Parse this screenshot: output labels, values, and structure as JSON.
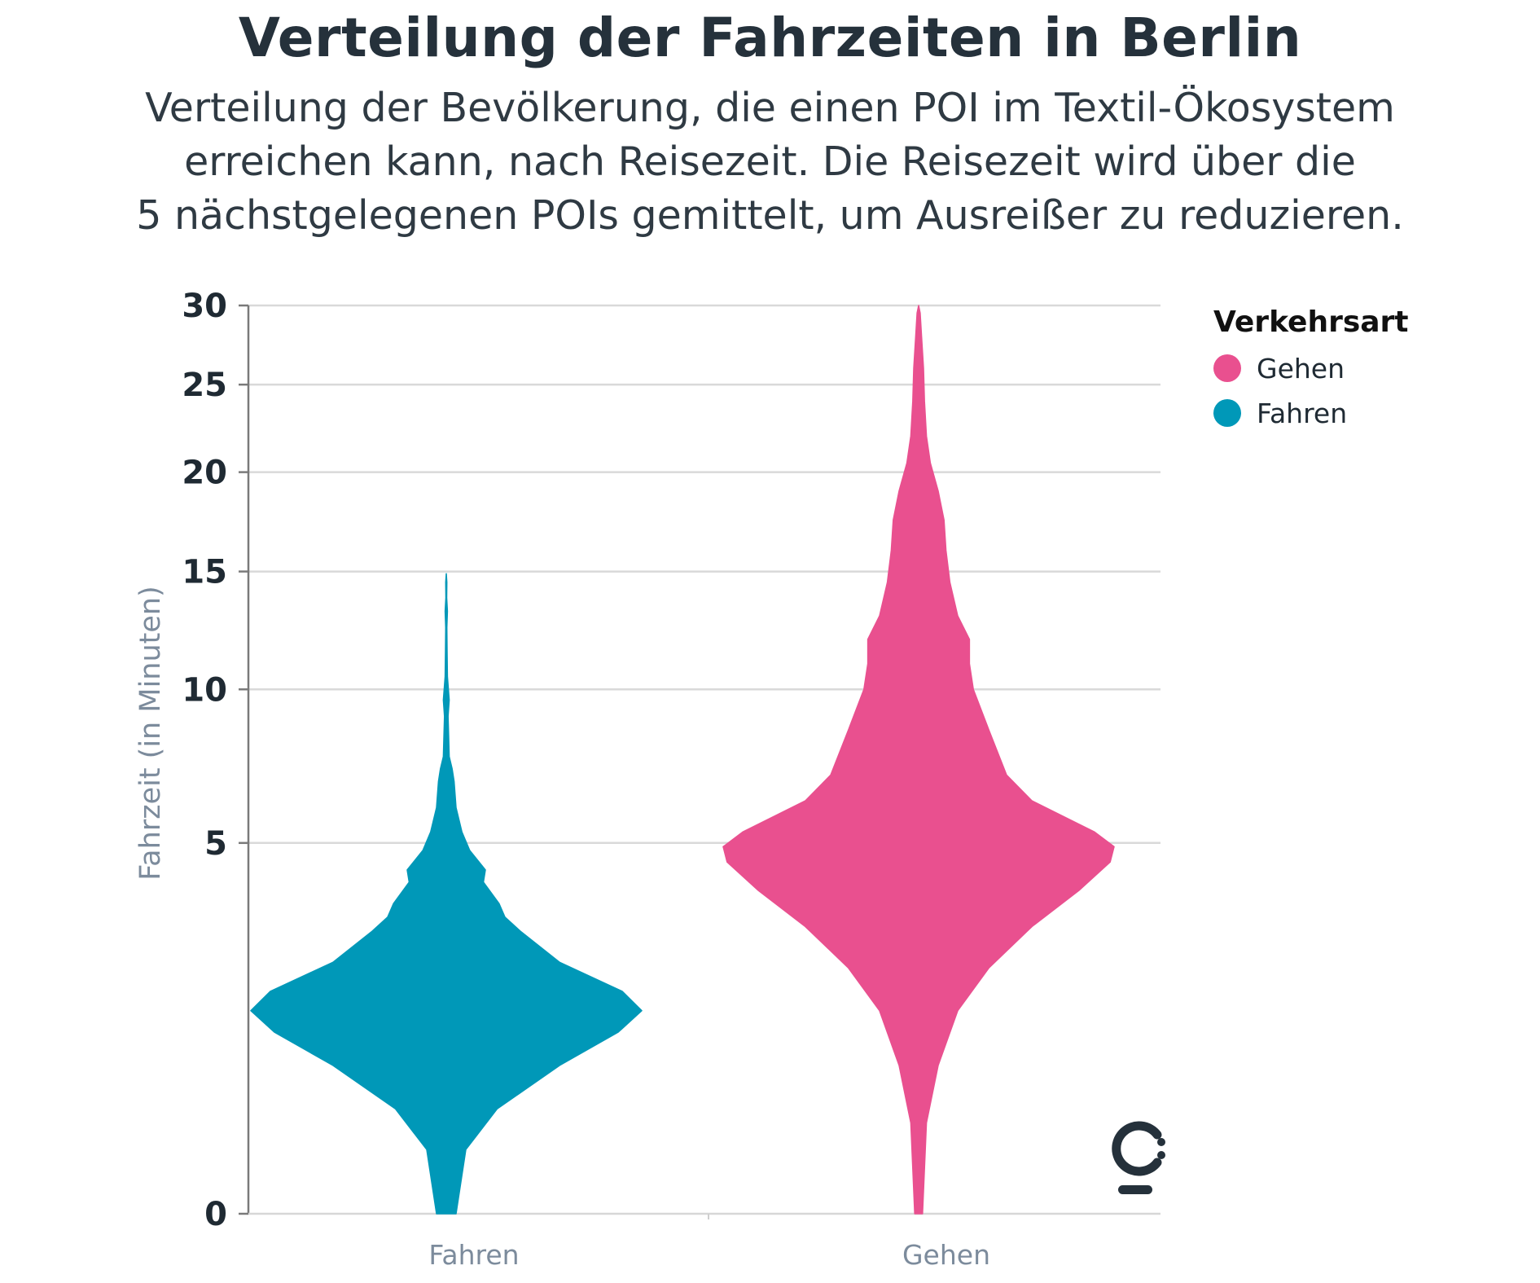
{
  "chart_data": {
    "type": "violin",
    "title": "Verteilung der Fahrzeiten in Berlin",
    "subtitle_lines": [
      "Verteilung der Bevölkerung, die einen POI im Textil-Ökosystem",
      "erreichen kann, nach Reisezeit. Die Reisezeit wird über die",
      "5 nächstgelegenen POIs gemittelt, um Ausreißer zu reduzieren."
    ],
    "ylabel": "Fahrzeit (in Minuten)",
    "yscale": "sqrt",
    "ylim": [
      0,
      30
    ],
    "yticks": [
      0,
      5,
      10,
      15,
      20,
      25,
      30
    ],
    "categories": [
      "Fahren",
      "Gehen"
    ],
    "legend": {
      "title": "Verkehrsart",
      "position": "top-right",
      "entries": [
        {
          "label": "Gehen",
          "color": "#e9508f"
        },
        {
          "label": "Fahren",
          "color": "#0098b8"
        }
      ]
    },
    "series": [
      {
        "name": "Fahren",
        "color": "#0098b8",
        "density": [
          [
            0.0,
            0.05
          ],
          [
            0.15,
            0.1
          ],
          [
            0.4,
            0.26
          ],
          [
            0.8,
            0.58
          ],
          [
            1.2,
            0.88
          ],
          [
            1.5,
            1.0
          ],
          [
            1.8,
            0.9
          ],
          [
            2.3,
            0.58
          ],
          [
            2.9,
            0.38
          ],
          [
            3.2,
            0.3
          ],
          [
            3.5,
            0.27
          ],
          [
            4.0,
            0.19
          ],
          [
            4.3,
            0.2
          ],
          [
            4.8,
            0.12
          ],
          [
            5.3,
            0.08
          ],
          [
            6.0,
            0.05
          ],
          [
            6.8,
            0.04
          ],
          [
            7.2,
            0.03
          ],
          [
            7.6,
            0.015
          ],
          [
            8.3,
            0.012
          ],
          [
            9.0,
            0.009
          ],
          [
            9.6,
            0.015
          ],
          [
            10.5,
            0.006
          ],
          [
            11.5,
            0.004
          ],
          [
            12.5,
            0.003
          ],
          [
            13.2,
            0.006
          ],
          [
            13.8,
            0.002
          ],
          [
            14.5,
            0.003
          ],
          [
            14.9,
            0.0
          ]
        ]
      },
      {
        "name": "Gehen",
        "color": "#e9508f",
        "density": [
          [
            0.0,
            0.02
          ],
          [
            0.3,
            0.04
          ],
          [
            0.8,
            0.1
          ],
          [
            1.5,
            0.2
          ],
          [
            2.2,
            0.36
          ],
          [
            3.0,
            0.58
          ],
          [
            3.8,
            0.82
          ],
          [
            4.5,
            0.98
          ],
          [
            4.9,
            1.0
          ],
          [
            5.3,
            0.9
          ],
          [
            6.2,
            0.58
          ],
          [
            7.0,
            0.45
          ],
          [
            8.5,
            0.36
          ],
          [
            10.0,
            0.28
          ],
          [
            11.0,
            0.26
          ],
          [
            12.0,
            0.26
          ],
          [
            13.0,
            0.2
          ],
          [
            14.5,
            0.16
          ],
          [
            16.0,
            0.14
          ],
          [
            17.5,
            0.13
          ],
          [
            19.0,
            0.1
          ],
          [
            20.5,
            0.06
          ],
          [
            22.0,
            0.04
          ],
          [
            24.0,
            0.03
          ],
          [
            26.0,
            0.025
          ],
          [
            28.0,
            0.015
          ],
          [
            29.5,
            0.008
          ],
          [
            30.0,
            0.0
          ]
        ]
      }
    ]
  }
}
